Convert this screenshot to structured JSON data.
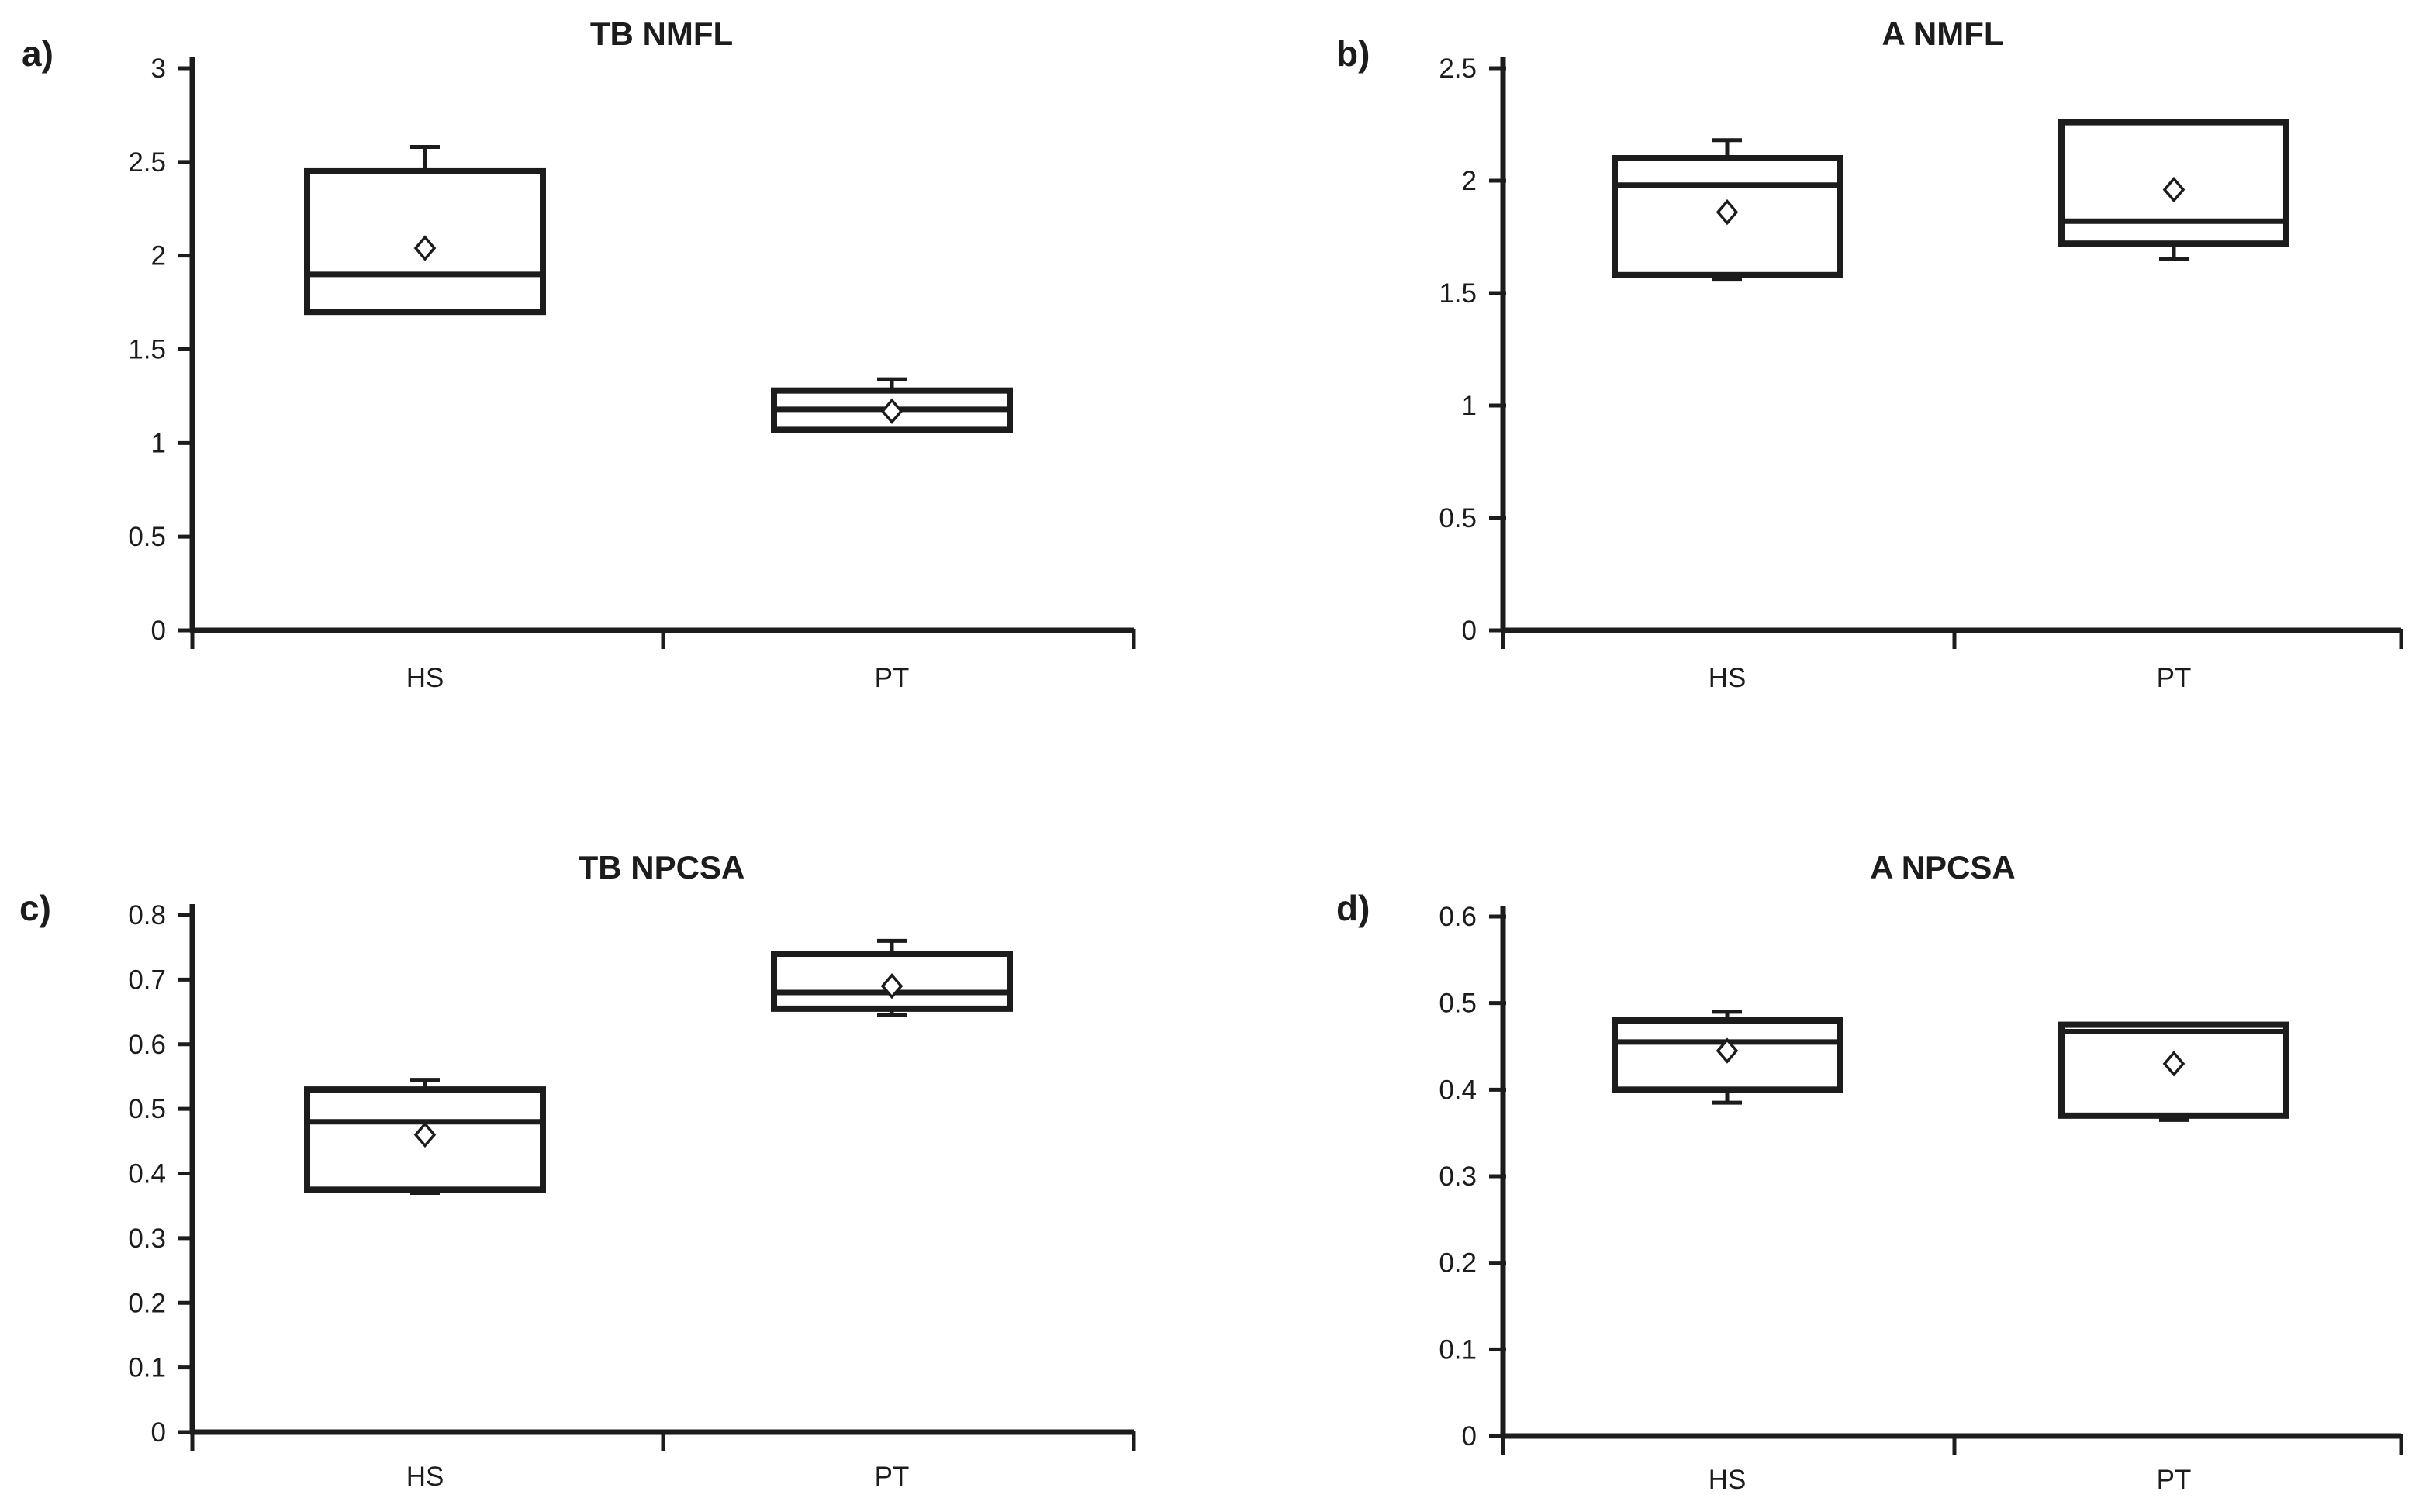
{
  "figure": {
    "background": "#ffffff",
    "ink_color": "#1c1c1c",
    "marker": "open-diamond"
  },
  "chart_data": [
    {
      "type": "box",
      "panel_letter": "a)",
      "title": "TB NMFL",
      "categories": [
        "HS",
        "PT"
      ],
      "y_axis": {
        "min": 0,
        "max": 3,
        "tick_values": [
          3,
          2.5,
          2,
          1.5,
          1,
          0.5,
          0
        ],
        "tick_labels": [
          "3",
          "2.5",
          "2",
          "1.5",
          "1",
          "0.5",
          "0"
        ]
      },
      "legend": "none",
      "grid": false,
      "series": [
        {
          "name": "HS",
          "min": 1.7,
          "q1": 1.7,
          "median": 1.9,
          "mean": 2.04,
          "q3": 2.45,
          "max": 2.58
        },
        {
          "name": "PT",
          "min": 1.07,
          "q1": 1.07,
          "median": 1.18,
          "mean": 1.17,
          "q3": 1.28,
          "max": 1.34
        }
      ]
    },
    {
      "type": "box",
      "panel_letter": "b)",
      "title": "A NMFL",
      "categories": [
        "HS",
        "PT"
      ],
      "y_axis": {
        "min": 0,
        "max": 2.5,
        "tick_values": [
          2.5,
          2,
          1.5,
          1,
          0.5,
          0
        ],
        "tick_labels": [
          "2.5",
          "2",
          "1.5",
          "1",
          "0.5",
          "0"
        ]
      },
      "legend": "none",
      "grid": false,
      "series": [
        {
          "name": "HS",
          "min": 1.56,
          "q1": 1.58,
          "median": 1.98,
          "mean": 1.86,
          "q3": 2.1,
          "max": 2.18
        },
        {
          "name": "PT",
          "min": 1.65,
          "q1": 1.72,
          "median": 1.82,
          "mean": 1.96,
          "q3": 2.26,
          "max": 2.26
        }
      ]
    },
    {
      "type": "box",
      "panel_letter": "c)",
      "title": "TB NPCSA",
      "categories": [
        "HS",
        "PT"
      ],
      "y_axis": {
        "min": 0,
        "max": 0.8,
        "tick_values": [
          0.8,
          0.7,
          0.6,
          0.5,
          0.4,
          0.3,
          0.2,
          0.1,
          0
        ],
        "tick_labels": [
          "0.8",
          "0.7",
          "0.6",
          "0.5",
          "0.4",
          "0.3",
          "0.2",
          "0.1",
          "0"
        ]
      },
      "legend": "none",
      "grid": false,
      "series": [
        {
          "name": "HS",
          "min": 0.37,
          "q1": 0.375,
          "median": 0.48,
          "mean": 0.46,
          "q3": 0.53,
          "max": 0.545
        },
        {
          "name": "PT",
          "min": 0.645,
          "q1": 0.655,
          "median": 0.68,
          "mean": 0.69,
          "q3": 0.74,
          "max": 0.76
        }
      ]
    },
    {
      "type": "box",
      "panel_letter": "d)",
      "title": "A NPCSA",
      "categories": [
        "HS",
        "PT"
      ],
      "y_axis": {
        "min": 0,
        "max": 0.6,
        "tick_values": [
          0.6,
          0.5,
          0.4,
          0.3,
          0.2,
          0.1,
          0
        ],
        "tick_labels": [
          "0.6",
          "0.5",
          "0.4",
          "0.3",
          "0.2",
          "0.1",
          "0"
        ]
      },
      "legend": "none",
      "grid": false,
      "series": [
        {
          "name": "HS",
          "min": 0.385,
          "q1": 0.4,
          "median": 0.455,
          "mean": 0.445,
          "q3": 0.48,
          "max": 0.49
        },
        {
          "name": "PT",
          "min": 0.365,
          "q1": 0.37,
          "median": 0.467,
          "mean": 0.43,
          "q3": 0.475,
          "max": 0.475
        }
      ]
    }
  ]
}
